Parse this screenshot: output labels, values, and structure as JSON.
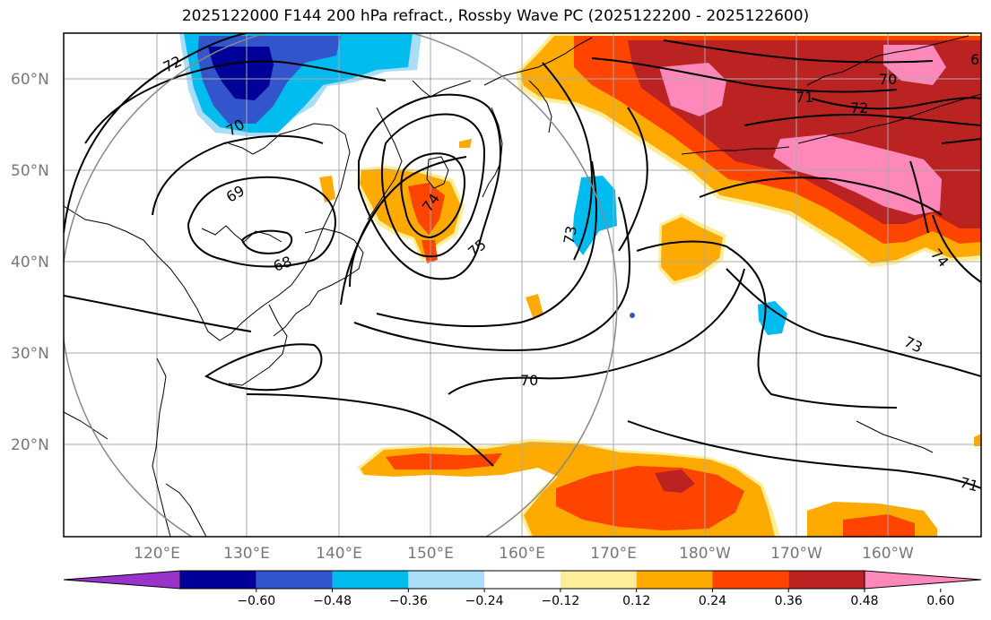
{
  "title": "2025122000 F144 200 hPa refract., Rossby Wave PC (2025122200 - 2025122600)",
  "map": {
    "region": "North Pacific",
    "lat_labels": [
      "60°N",
      "50°N",
      "40°N",
      "30°N",
      "20°N"
    ],
    "lon_labels": [
      "120°E",
      "130°E",
      "140°E",
      "150°E",
      "160°E",
      "170°E",
      "180°W",
      "170°W",
      "160°W"
    ],
    "colorbar": {
      "ticks": [
        "−0.60",
        "−0.48",
        "−0.36",
        "−0.24",
        "−0.12",
        "0.12",
        "0.24",
        "0.36",
        "0.48",
        "0.60"
      ],
      "colors": [
        "#9933cc",
        "#000099",
        "#3355cc",
        "#00bbee",
        "#aaddf8",
        "#ffffff",
        "#ffee99",
        "#ffaa00",
        "#ff4400",
        "#bb2222",
        "#ff88bb"
      ]
    },
    "contour_labels": [
      "72",
      "70",
      "69",
      "68",
      "74",
      "75",
      "73",
      "70",
      "71",
      "72",
      "70",
      "6",
      "74",
      "73",
      "71"
    ]
  }
}
